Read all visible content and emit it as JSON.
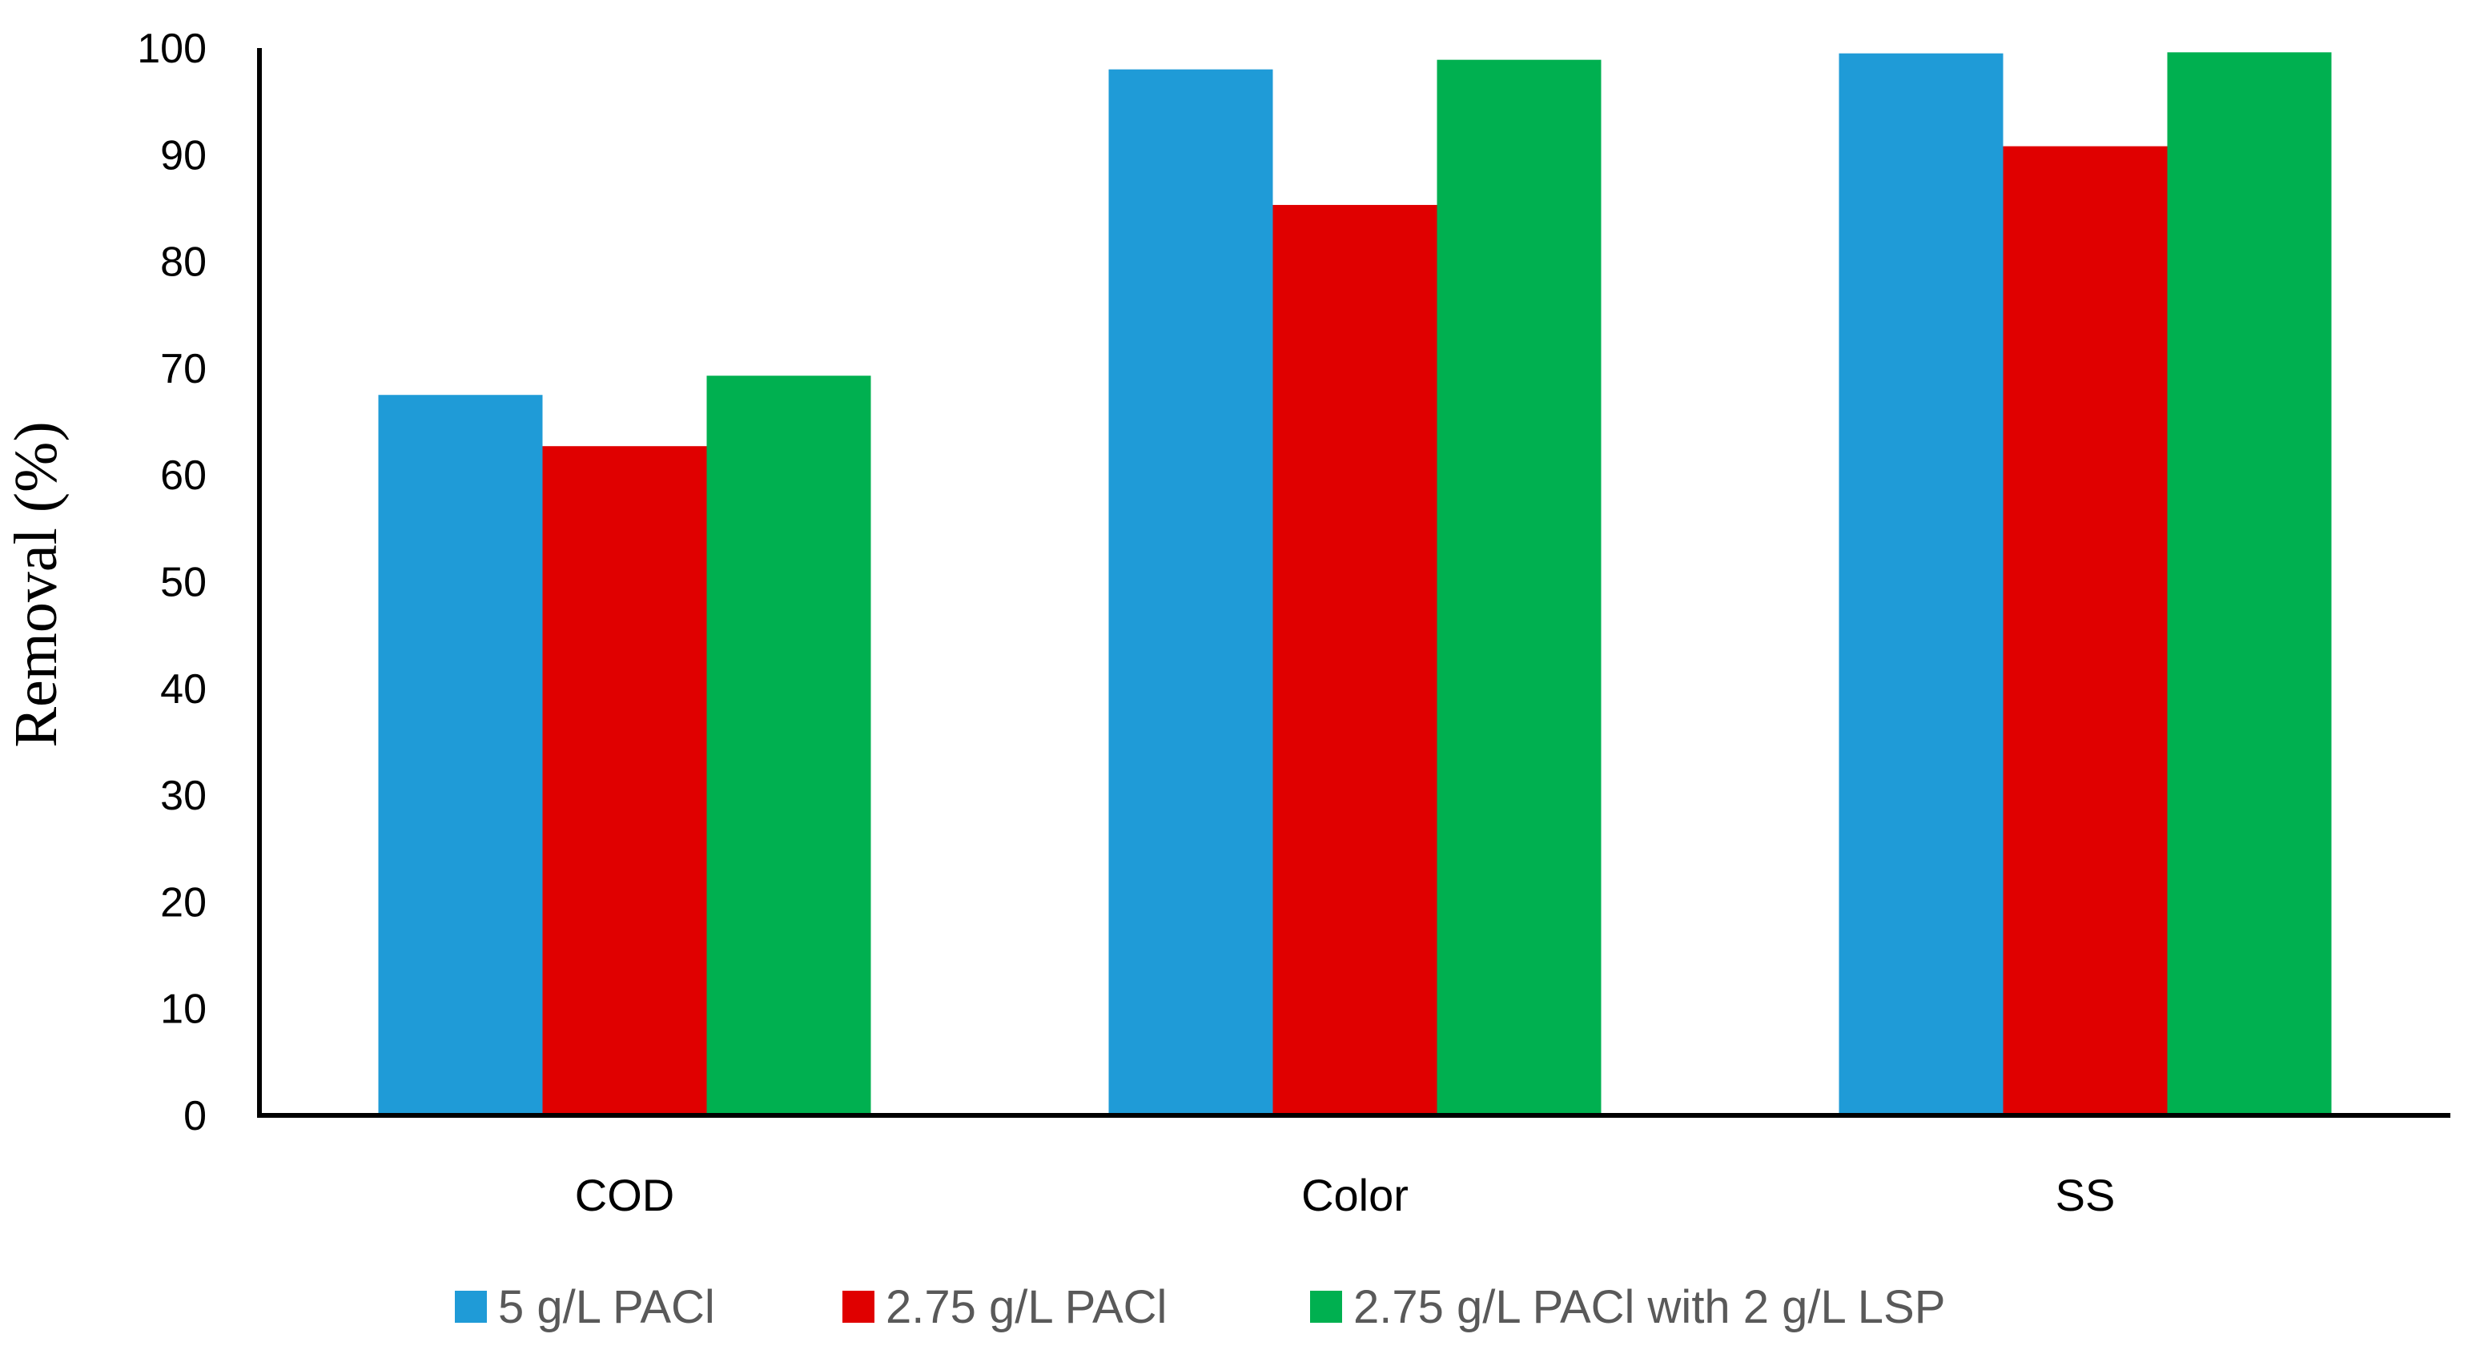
{
  "chart_data": {
    "type": "bar",
    "title": "",
    "xlabel": "",
    "ylabel": "Removal (%)",
    "categories": [
      "COD",
      "Color",
      "SS"
    ],
    "ylim": [
      0,
      100
    ],
    "yticks": [
      "0",
      "10",
      "20",
      "30",
      "40",
      "50",
      "60",
      "70",
      "80",
      "90",
      "100"
    ],
    "grid": false,
    "legend_position": "bottom",
    "series": [
      {
        "name": "5 g/L PACl",
        "color": "#1F9BD7",
        "values": [
          67.5,
          98.0,
          99.5
        ]
      },
      {
        "name": "2.75 g/L PACl",
        "color": "#E00000",
        "values": [
          62.7,
          85.3,
          90.8
        ]
      },
      {
        "name": "2.75 g/L PACl with 2 g/L LSP",
        "color": "#00B050",
        "values": [
          69.3,
          98.9,
          99.6
        ]
      }
    ]
  }
}
